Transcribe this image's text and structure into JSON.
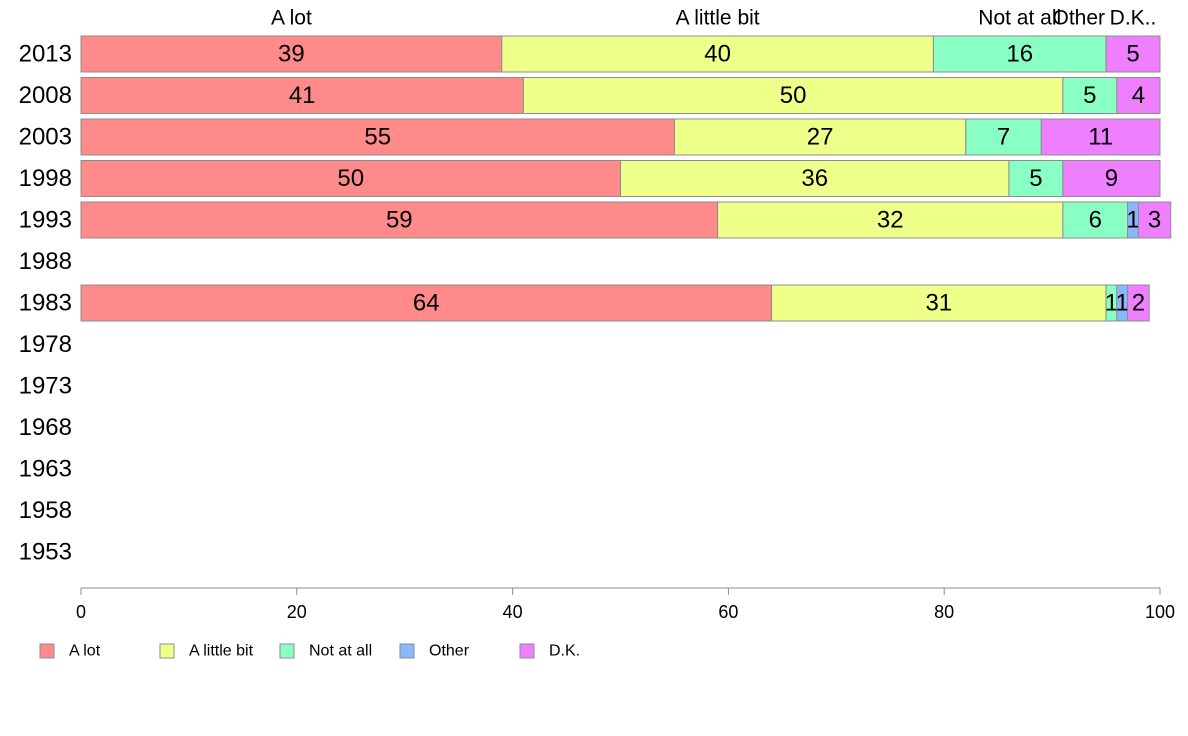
{
  "chart_data": {
    "type": "bar",
    "orientation": "horizontal",
    "stacked": true,
    "categories": [
      "2013",
      "2008",
      "2003",
      "1998",
      "1993",
      "1988",
      "1983",
      "1978",
      "1973",
      "1968",
      "1963",
      "1958",
      "1953"
    ],
    "series": [
      {
        "name": "A lot",
        "color": "#ff8a8a",
        "values": [
          39,
          41,
          55,
          50,
          59,
          null,
          64,
          null,
          null,
          null,
          null,
          null,
          null
        ]
      },
      {
        "name": "A little bit",
        "color": "#eeff8a",
        "values": [
          40,
          50,
          27,
          36,
          32,
          null,
          31,
          null,
          null,
          null,
          null,
          null,
          null
        ]
      },
      {
        "name": "Not at all",
        "color": "#8affc4",
        "values": [
          16,
          5,
          7,
          5,
          6,
          null,
          1,
          null,
          null,
          null,
          null,
          null,
          null
        ]
      },
      {
        "name": "Other",
        "color": "#8ab8ff",
        "values": [
          0,
          0,
          0,
          0,
          1,
          null,
          1,
          null,
          null,
          null,
          null,
          null,
          null
        ]
      },
      {
        "name": "D.K.",
        "color": "#ee80ff",
        "values": [
          5,
          4,
          11,
          9,
          3,
          null,
          2,
          null,
          null,
          null,
          null,
          null,
          null
        ]
      }
    ],
    "top_labels": [
      "A lot",
      "A little bit",
      "Not at all",
      "Other",
      "D.K.."
    ],
    "xlim": [
      0,
      100
    ],
    "xticks": [
      "0",
      "20",
      "40",
      "60",
      "80",
      "100"
    ],
    "grid": false,
    "legend_position": "bottom-left",
    "title": "",
    "xlabel": "",
    "ylabel": ""
  }
}
